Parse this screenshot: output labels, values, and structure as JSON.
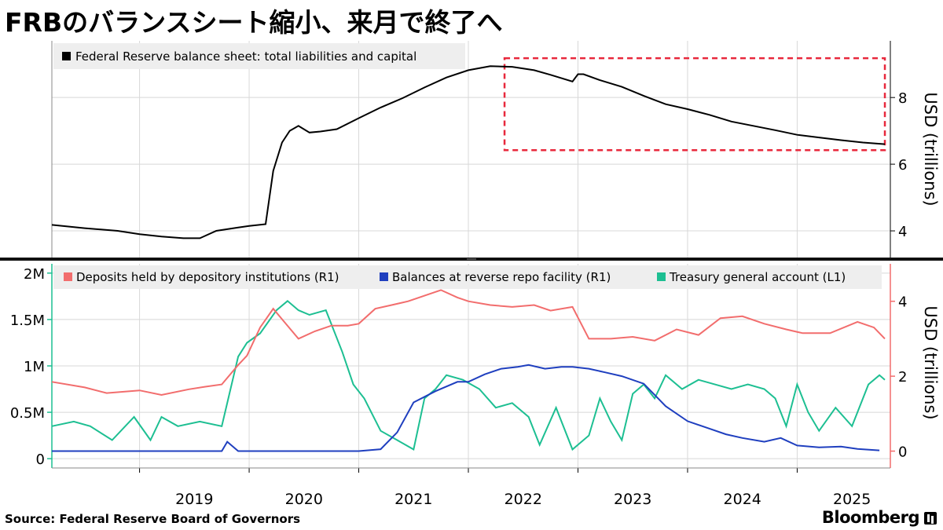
{
  "title": "FRBのバランスシート縮小、来月で終了へ",
  "source": "Source: Federal Reserve Board of Governors",
  "brand": "Bloomberg",
  "colors": {
    "balance_sheet": "#000000",
    "deposits": "#f26d6d",
    "reverse_repo": "#1f3fbf",
    "tga": "#1dbf92",
    "highlight_box": "#e8283c",
    "grid": "#d8d8d8"
  },
  "x_tick_labels": [
    "2019",
    "2020",
    "2021",
    "2022",
    "2023",
    "2024",
    "2025"
  ],
  "chart_data": [
    {
      "type": "line",
      "legend_position": "top-left",
      "grid": true,
      "ylabel": "USD (trillions)",
      "ylim": [
        3.2,
        9.7
      ],
      "yticks": [
        4,
        6,
        8
      ],
      "xlim": [
        2018.2,
        2025.85
      ],
      "annotation": "dashed red box highlighting 2022.3–2025.8",
      "highlight_range": [
        2022.33,
        2025.8
      ],
      "series": [
        {
          "name": "Federal Reserve balance sheet: total liabilities and capital",
          "x": [
            2018.2,
            2018.5,
            2018.8,
            2019.0,
            2019.2,
            2019.4,
            2019.55,
            2019.7,
            2019.9,
            2020.0,
            2020.15,
            2020.22,
            2020.3,
            2020.37,
            2020.45,
            2020.55,
            2020.65,
            2020.8,
            2021.0,
            2021.2,
            2021.4,
            2021.6,
            2021.8,
            2022.0,
            2022.2,
            2022.4,
            2022.6,
            2022.75,
            2022.95,
            2023.0,
            2023.05,
            2023.2,
            2023.4,
            2023.6,
            2023.8,
            2024.0,
            2024.2,
            2024.4,
            2024.6,
            2024.8,
            2025.0,
            2025.2,
            2025.4,
            2025.6,
            2025.8
          ],
          "values": [
            4.18,
            4.08,
            4.0,
            3.9,
            3.83,
            3.78,
            3.78,
            4.0,
            4.1,
            4.15,
            4.2,
            5.8,
            6.65,
            7.0,
            7.15,
            6.95,
            6.98,
            7.05,
            7.38,
            7.7,
            7.98,
            8.3,
            8.6,
            8.82,
            8.94,
            8.92,
            8.82,
            8.68,
            8.48,
            8.7,
            8.7,
            8.52,
            8.32,
            8.05,
            7.8,
            7.65,
            7.48,
            7.28,
            7.15,
            7.02,
            6.88,
            6.8,
            6.72,
            6.65,
            6.6
          ]
        }
      ]
    },
    {
      "type": "line",
      "legend_position": "top",
      "grid": true,
      "ylabel": "USD (trillions)",
      "xlim": [
        2018.2,
        2025.85
      ],
      "left_axis": {
        "ylim": [
          -0.1,
          2.1
        ],
        "ytick_labels": [
          "0",
          "0.5M",
          "1M",
          "1.5M",
          "2M"
        ],
        "yticks": [
          0,
          0.5,
          1,
          1.5,
          2
        ]
      },
      "right_axis": {
        "ylim": [
          -0.45,
          5.0
        ],
        "yticks": [
          0,
          2,
          4
        ]
      },
      "series": [
        {
          "name": "Deposits held by depository institutions (R1)",
          "axis": "right",
          "x": [
            2018.2,
            2018.5,
            2018.7,
            2019.0,
            2019.2,
            2019.45,
            2019.6,
            2019.75,
            2019.9,
            2019.98,
            2020.1,
            2020.22,
            2020.32,
            2020.45,
            2020.6,
            2020.75,
            2020.9,
            2021.0,
            2021.15,
            2021.3,
            2021.45,
            2021.6,
            2021.75,
            2021.9,
            2022.0,
            2022.2,
            2022.4,
            2022.6,
            2022.75,
            2022.95,
            2023.1,
            2023.3,
            2023.5,
            2023.7,
            2023.9,
            2024.1,
            2024.3,
            2024.5,
            2024.7,
            2024.9,
            2025.05,
            2025.3,
            2025.55,
            2025.7,
            2025.8
          ],
          "values": [
            1.85,
            1.7,
            1.55,
            1.62,
            1.5,
            1.65,
            1.72,
            1.78,
            2.3,
            2.55,
            3.3,
            3.8,
            3.45,
            3.0,
            3.2,
            3.35,
            3.35,
            3.4,
            3.8,
            3.9,
            4.0,
            4.15,
            4.3,
            4.1,
            4.0,
            3.9,
            3.85,
            3.9,
            3.75,
            3.85,
            3.0,
            3.0,
            3.05,
            2.95,
            3.25,
            3.1,
            3.55,
            3.6,
            3.4,
            3.25,
            3.15,
            3.15,
            3.45,
            3.3,
            3.0
          ]
        },
        {
          "name": "Balances at reverse repo facility (R1)",
          "axis": "right",
          "x": [
            2018.2,
            2018.6,
            2019.0,
            2019.5,
            2019.75,
            2019.8,
            2019.9,
            2020.2,
            2020.6,
            2020.9,
            2021.0,
            2021.2,
            2021.35,
            2021.5,
            2021.7,
            2021.9,
            2022.0,
            2022.15,
            2022.3,
            2022.45,
            2022.55,
            2022.7,
            2022.85,
            2022.95,
            2023.1,
            2023.25,
            2023.4,
            2023.6,
            2023.8,
            2024.0,
            2024.2,
            2024.35,
            2024.5,
            2024.7,
            2024.85,
            2025.0,
            2025.2,
            2025.4,
            2025.55,
            2025.75
          ],
          "values": [
            0.0,
            0.0,
            0.0,
            0.0,
            0.0,
            0.25,
            0.0,
            0.0,
            0.0,
            0.0,
            0.0,
            0.05,
            0.5,
            1.3,
            1.6,
            1.85,
            1.85,
            2.05,
            2.2,
            2.25,
            2.3,
            2.2,
            2.25,
            2.25,
            2.2,
            2.1,
            2.0,
            1.8,
            1.2,
            0.8,
            0.6,
            0.45,
            0.35,
            0.25,
            0.35,
            0.15,
            0.1,
            0.12,
            0.06,
            0.02
          ]
        },
        {
          "name": "Treasury general account (L1)",
          "axis": "left",
          "x": [
            2018.2,
            2018.4,
            2018.55,
            2018.75,
            2018.95,
            2019.1,
            2019.2,
            2019.35,
            2019.55,
            2019.75,
            2019.9,
            2019.98,
            2020.1,
            2020.25,
            2020.35,
            2020.45,
            2020.55,
            2020.7,
            2020.85,
            2020.95,
            2021.05,
            2021.2,
            2021.35,
            2021.5,
            2021.6,
            2021.7,
            2021.8,
            2021.95,
            2022.1,
            2022.25,
            2022.4,
            2022.55,
            2022.65,
            2022.8,
            2022.95,
            2023.1,
            2023.2,
            2023.3,
            2023.4,
            2023.5,
            2023.6,
            2023.7,
            2023.8,
            2023.95,
            2024.1,
            2024.25,
            2024.4,
            2024.55,
            2024.7,
            2024.8,
            2024.9,
            2025.0,
            2025.1,
            2025.2,
            2025.35,
            2025.5,
            2025.65,
            2025.75,
            2025.8
          ],
          "values": [
            0.35,
            0.4,
            0.35,
            0.2,
            0.45,
            0.2,
            0.45,
            0.35,
            0.4,
            0.35,
            1.1,
            1.25,
            1.35,
            1.6,
            1.7,
            1.6,
            1.55,
            1.6,
            1.15,
            0.8,
            0.65,
            0.3,
            0.2,
            0.1,
            0.65,
            0.75,
            0.9,
            0.85,
            0.75,
            0.55,
            0.6,
            0.45,
            0.15,
            0.55,
            0.1,
            0.25,
            0.65,
            0.4,
            0.2,
            0.7,
            0.8,
            0.65,
            0.9,
            0.75,
            0.85,
            0.8,
            0.75,
            0.8,
            0.75,
            0.65,
            0.35,
            0.8,
            0.5,
            0.3,
            0.55,
            0.35,
            0.8,
            0.9,
            0.85
          ]
        }
      ]
    }
  ]
}
